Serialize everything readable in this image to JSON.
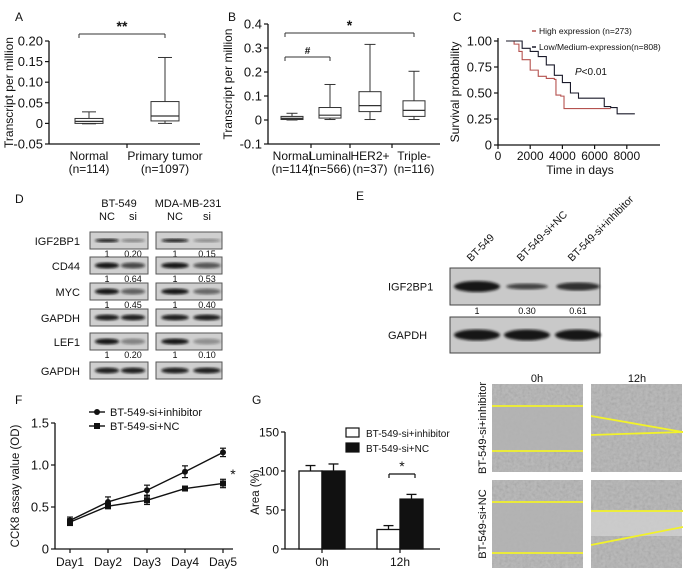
{
  "panel_labels": [
    "A",
    "B",
    "C",
    "D",
    "E",
    "F",
    "G"
  ],
  "chart_data": [
    {
      "panel": "A",
      "type": "box",
      "ylabel": "Transcript per million",
      "ylim": [
        -0.05,
        0.2
      ],
      "yticks": [
        "0.20",
        "0.15",
        "0.10",
        "0.05",
        "0",
        "-0.05"
      ],
      "categories": [
        [
          "Normal",
          "(n=114)"
        ],
        [
          "Primary tumor",
          "(n=1097)"
        ]
      ],
      "boxes": [
        {
          "min": -0.001,
          "q1": 0.0,
          "median": 0.005,
          "q3": 0.012,
          "max": 0.028,
          "fill": "#ffffff"
        },
        {
          "min": 0.0,
          "q1": 0.006,
          "median": 0.018,
          "q3": 0.053,
          "max": 0.16,
          "fill": "#ffffff"
        }
      ],
      "significance": [
        {
          "from": 0,
          "to": 1,
          "label": "**"
        }
      ]
    },
    {
      "panel": "B",
      "type": "box",
      "ylabel": "Transcript per million",
      "ylim": [
        -0.1,
        0.4
      ],
      "yticks": [
        "0.4",
        "0.3",
        "0.2",
        "0.1",
        "0",
        "-0.1"
      ],
      "categories": [
        [
          "Normal",
          "(n=114)"
        ],
        [
          "Luminal",
          "(n=566)"
        ],
        [
          "HER2+",
          "(n=37)"
        ],
        [
          "Triple-",
          "(n=116)"
        ]
      ],
      "boxes": [
        {
          "min": 0.0,
          "q1": 0.002,
          "median": 0.006,
          "q3": 0.015,
          "max": 0.028,
          "fill": "#bdbdbd"
        },
        {
          "min": 0.002,
          "q1": 0.008,
          "median": 0.02,
          "q3": 0.052,
          "max": 0.148,
          "fill": "#ffffff"
        },
        {
          "min": 0.002,
          "q1": 0.035,
          "median": 0.06,
          "q3": 0.118,
          "max": 0.315,
          "fill": "#ffffff"
        },
        {
          "min": 0.002,
          "q1": 0.015,
          "median": 0.04,
          "q3": 0.08,
          "max": 0.203,
          "fill": "#ffffff"
        }
      ],
      "significance": [
        {
          "from": 0,
          "to": 3,
          "label": "*"
        },
        {
          "from": 0,
          "to": 1,
          "label": "#"
        }
      ]
    },
    {
      "panel": "C",
      "type": "line",
      "xlabel": "Time in days",
      "ylabel": "Survival probability",
      "xlim": [
        0,
        10000
      ],
      "ylim": [
        0,
        1.0
      ],
      "xticks": [
        "0",
        "2000",
        "4000",
        "6000",
        "8000"
      ],
      "yticks": [
        "1.00",
        "0.75",
        "0.50",
        "0.25",
        "0"
      ],
      "annotation": {
        "italic": "P",
        "text": "<0.01"
      },
      "legend_position": "top-right",
      "series": [
        {
          "name": "High expression (n=273)",
          "color": "#b5524f",
          "points": [
            [
              500,
              1.0
            ],
            [
              1000,
              0.97
            ],
            [
              1300,
              0.9
            ],
            [
              1500,
              0.82
            ],
            [
              2000,
              0.72
            ],
            [
              2500,
              0.66
            ],
            [
              3000,
              0.64
            ],
            [
              3500,
              0.63
            ],
            [
              3600,
              0.48
            ],
            [
              3900,
              0.47
            ],
            [
              4100,
              0.35
            ],
            [
              7000,
              0.35
            ]
          ]
        },
        {
          "name": "Low/Medium-expression(n=808)",
          "color": "#1a1a2a",
          "points": [
            [
              500,
              1.0
            ],
            [
              1500,
              0.93
            ],
            [
              2000,
              0.9
            ],
            [
              2500,
              0.85
            ],
            [
              3000,
              0.77
            ],
            [
              3500,
              0.67
            ],
            [
              4000,
              0.6
            ],
            [
              4500,
              0.5
            ],
            [
              5000,
              0.45
            ],
            [
              6500,
              0.45
            ],
            [
              6600,
              0.37
            ],
            [
              7000,
              0.36
            ],
            [
              7300,
              0.36
            ],
            [
              7400,
              0.3
            ],
            [
              8500,
              0.3
            ]
          ]
        }
      ]
    },
    {
      "panel": "F",
      "type": "line",
      "ylabel": "CCK8 assay value (OD)",
      "ylim": [
        0,
        1.5
      ],
      "yticks": [
        "1.5",
        "1.0",
        "0.5",
        "0"
      ],
      "categories": [
        "Day1",
        "Day2",
        "Day3",
        "Day4",
        "Day5"
      ],
      "legend_position": "top-left",
      "significance_label": "*",
      "series": [
        {
          "name": "BT-549-si+inhibitor",
          "marker": "circle",
          "values": [
            0.34,
            0.56,
            0.7,
            0.92,
            1.15
          ],
          "errors": [
            0.04,
            0.06,
            0.06,
            0.07,
            0.05
          ]
        },
        {
          "name": "BT-549-si+NC",
          "marker": "square",
          "values": [
            0.32,
            0.51,
            0.58,
            0.72,
            0.78
          ],
          "errors": [
            0.04,
            0.03,
            0.05,
            0.02,
            0.05
          ]
        }
      ]
    },
    {
      "panel": "G",
      "type": "bar",
      "ylabel": "Area (%)",
      "ylim": [
        0,
        150
      ],
      "yticks": [
        "150",
        "100",
        "50",
        "0"
      ],
      "categories": [
        "0h",
        "12h"
      ],
      "legend_position": "top-right",
      "series": [
        {
          "name": "BT-549-si+inhibitor",
          "color": "#ffffff",
          "values": [
            100,
            25
          ],
          "errors": [
            7,
            5
          ]
        },
        {
          "name": "BT-549-si+NC",
          "color": "#111111",
          "values": [
            100,
            64
          ],
          "errors": [
            9,
            6
          ]
        }
      ],
      "significance": [
        {
          "category": 1,
          "label": "*"
        }
      ]
    }
  ],
  "blot_D": {
    "cell_lines": [
      "BT-549",
      "MDA-MB-231"
    ],
    "lanes": [
      [
        "NC",
        "si"
      ],
      [
        "NC",
        "si"
      ]
    ],
    "rows": [
      {
        "protein": "IGF2BP1",
        "values": [
          [
            "1",
            "0.20"
          ],
          [
            "1",
            "0.15"
          ]
        ]
      },
      {
        "protein": "CD44",
        "values": [
          [
            "1",
            "0.64"
          ],
          [
            "1",
            "0.53"
          ]
        ]
      },
      {
        "protein": "MYC",
        "values": [
          [
            "1",
            "0.45"
          ],
          [
            "1",
            "0.40"
          ]
        ]
      },
      {
        "protein": "GAPDH",
        "values": null
      },
      {
        "protein": "LEF1",
        "values": [
          [
            "1",
            "0.20"
          ],
          [
            "1",
            "0.10"
          ]
        ]
      },
      {
        "protein": "GAPDH",
        "values": null
      }
    ]
  },
  "blot_E": {
    "lanes": [
      "BT-549",
      "BT-549-si+NC",
      "BT-549-si+inhibitor"
    ],
    "rows": [
      {
        "protein": "IGF2BP1",
        "values": [
          "1",
          "0.30",
          "0.61"
        ]
      },
      {
        "protein": "GAPDH",
        "values": null
      }
    ]
  },
  "scratch_H": {
    "timepoints": [
      "0h",
      "12h"
    ],
    "conditions": [
      "BT-549-si+inhibitor",
      "BT-549-si+NC"
    ],
    "line_color": "#f2f22a"
  }
}
